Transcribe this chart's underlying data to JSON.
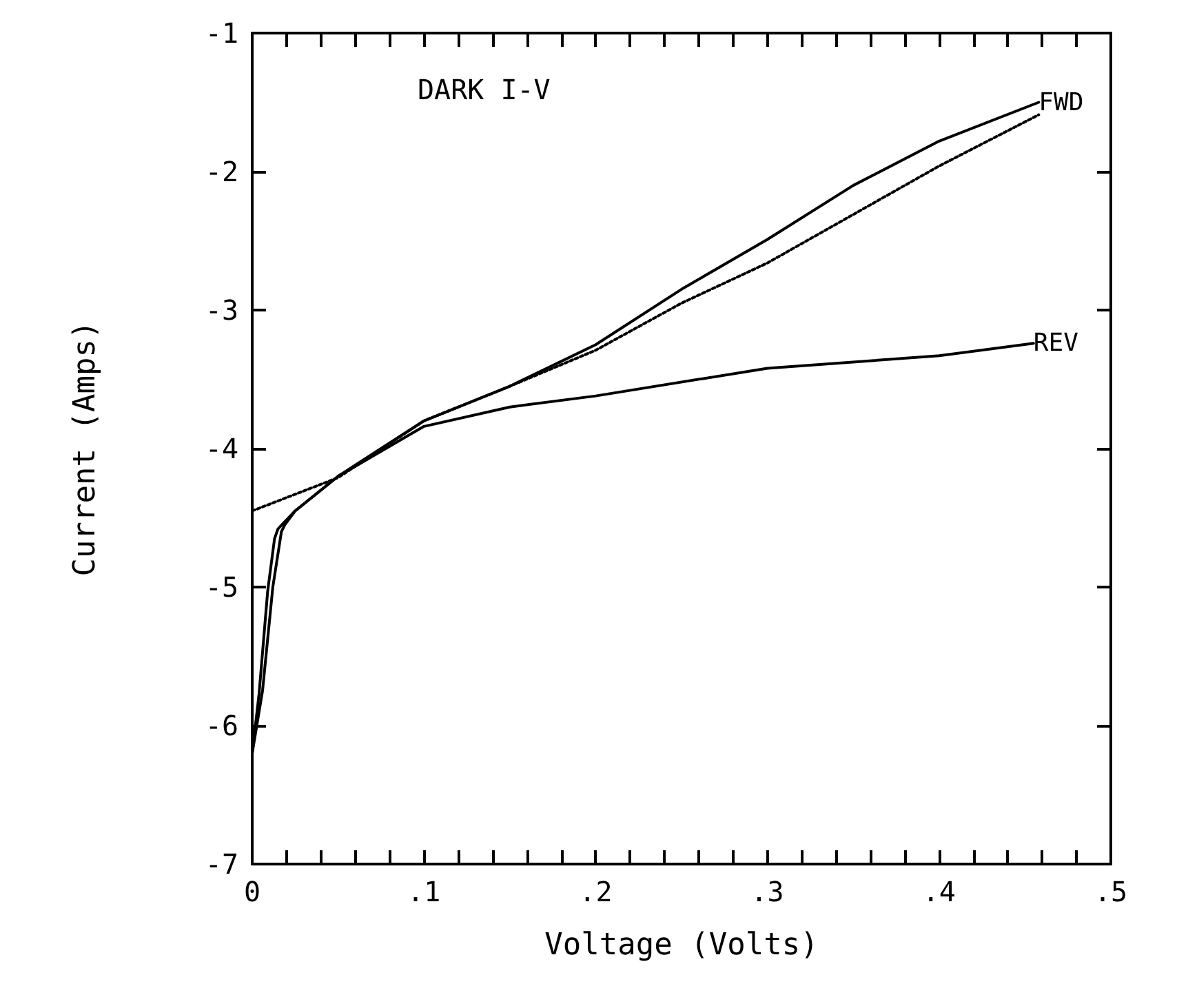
{
  "chart_data": {
    "type": "line",
    "title": "DARK I-V",
    "xlabel": "Voltage (Volts)",
    "ylabel": "Current (Amps)",
    "xlim": [
      0,
      0.5
    ],
    "ylim": [
      -7,
      -1
    ],
    "xticks": [
      {
        "value": 0,
        "label": "0"
      },
      {
        "value": 0.02,
        "label": null
      },
      {
        "value": 0.04,
        "label": null
      },
      {
        "value": 0.06,
        "label": null
      },
      {
        "value": 0.08,
        "label": null
      },
      {
        "value": 0.1,
        "label": ".1"
      },
      {
        "value": 0.12,
        "label": null
      },
      {
        "value": 0.14,
        "label": null
      },
      {
        "value": 0.16,
        "label": null
      },
      {
        "value": 0.18,
        "label": null
      },
      {
        "value": 0.2,
        "label": ".2"
      },
      {
        "value": 0.22,
        "label": null
      },
      {
        "value": 0.24,
        "label": null
      },
      {
        "value": 0.26,
        "label": null
      },
      {
        "value": 0.28,
        "label": null
      },
      {
        "value": 0.3,
        "label": ".3"
      },
      {
        "value": 0.32,
        "label": null
      },
      {
        "value": 0.34,
        "label": null
      },
      {
        "value": 0.36,
        "label": null
      },
      {
        "value": 0.38,
        "label": null
      },
      {
        "value": 0.4,
        "label": ".4"
      },
      {
        "value": 0.42,
        "label": null
      },
      {
        "value": 0.44,
        "label": null
      },
      {
        "value": 0.46,
        "label": null
      },
      {
        "value": 0.48,
        "label": null
      },
      {
        "value": 0.5,
        "label": ".5"
      }
    ],
    "yticks": [
      -7,
      -6,
      -5,
      -4,
      -3,
      -2,
      -1
    ],
    "grid": false,
    "legend": false,
    "marker": "none",
    "series": [
      {
        "name": "FWD",
        "color": "#000000",
        "line_style": "solid",
        "x": [
          0.0,
          0.006,
          0.012,
          0.017,
          0.019,
          0.025,
          0.05,
          0.1,
          0.15,
          0.2,
          0.25,
          0.3,
          0.35,
          0.4,
          0.458
        ],
        "values": [
          -6.2,
          -5.75,
          -5.0,
          -4.6,
          -4.55,
          -4.45,
          -4.2,
          -3.8,
          -3.55,
          -3.25,
          -2.85,
          -2.49,
          -2.1,
          -1.78,
          -1.5
        ]
      },
      {
        "name": "REV",
        "color": "#000000",
        "line_style": "solid",
        "x": [
          0.0,
          0.004,
          0.009,
          0.013,
          0.015,
          0.025,
          0.05,
          0.1,
          0.15,
          0.2,
          0.3,
          0.4,
          0.455
        ],
        "values": [
          -6.2,
          -5.77,
          -5.03,
          -4.65,
          -4.58,
          -4.45,
          -4.2,
          -3.84,
          -3.7,
          -3.62,
          -3.42,
          -3.33,
          -3.24
        ]
      },
      {
        "color": "#000000",
        "line_style": "dotted",
        "x": [
          0.0,
          0.05,
          0.1,
          0.15,
          0.2,
          0.25,
          0.3,
          0.4,
          0.458
        ],
        "values": [
          -4.45,
          -4.21,
          -3.8,
          -3.55,
          -3.29,
          -2.95,
          -2.66,
          -1.96,
          -1.59
        ]
      }
    ]
  }
}
